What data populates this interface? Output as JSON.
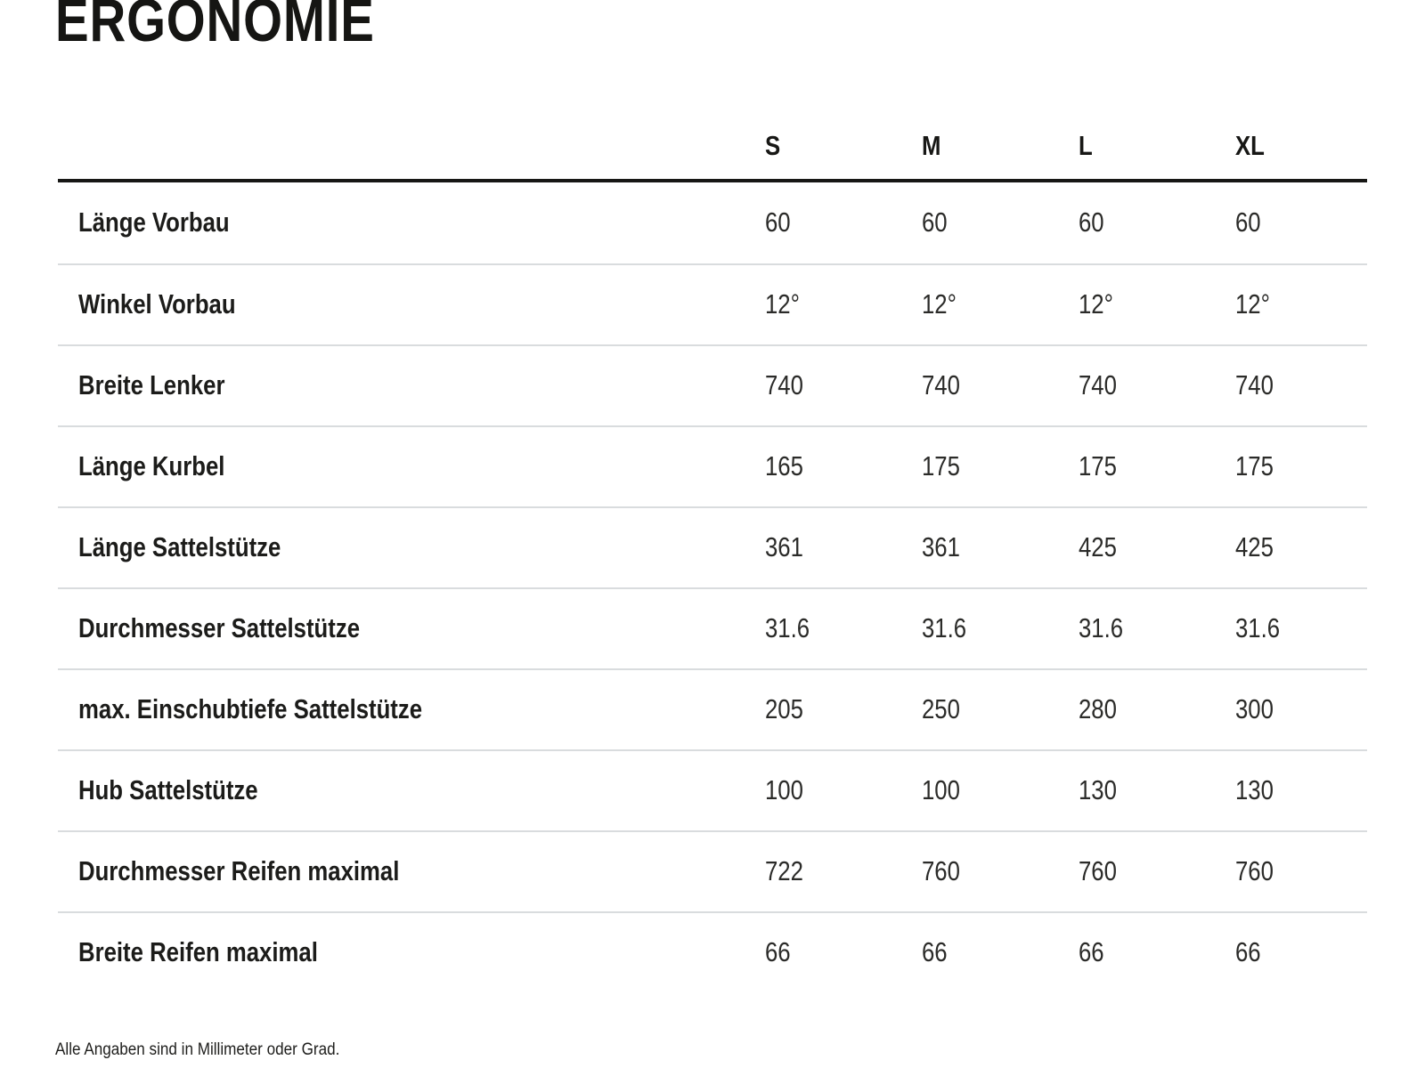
{
  "page": {
    "title": "ERGONOMIE",
    "footnote": "Alle Angaben sind in Millimeter oder Grad."
  },
  "table": {
    "columns": [
      "S",
      "M",
      "L",
      "XL"
    ],
    "rows": [
      {
        "label": "Länge Vorbau",
        "values": [
          "60",
          "60",
          "60",
          "60"
        ]
      },
      {
        "label": "Winkel Vorbau",
        "values": [
          "12°",
          "12°",
          "12°",
          "12°"
        ]
      },
      {
        "label": "Breite Lenker",
        "values": [
          "740",
          "740",
          "740",
          "740"
        ]
      },
      {
        "label": "Länge Kurbel",
        "values": [
          "165",
          "175",
          "175",
          "175"
        ]
      },
      {
        "label": "Länge Sattelstütze",
        "values": [
          "361",
          "361",
          "425",
          "425"
        ]
      },
      {
        "label": "Durchmesser Sattelstütze",
        "values": [
          "31.6",
          "31.6",
          "31.6",
          "31.6"
        ]
      },
      {
        "label": "max. Einschubtiefe Sattelstütze",
        "values": [
          "205",
          "250",
          "280",
          "300"
        ]
      },
      {
        "label": "Hub Sattelstütze",
        "values": [
          "100",
          "100",
          "130",
          "130"
        ]
      },
      {
        "label": "Durchmesser Reifen maximal",
        "values": [
          "722",
          "760",
          "760",
          "760"
        ]
      },
      {
        "label": "Breite Reifen maximal",
        "values": [
          "66",
          "66",
          "66",
          "66"
        ]
      }
    ],
    "colors": {
      "text": "#1c1c1a",
      "header_rule": "#171715",
      "row_divider": "#d9dcde",
      "background": "#ffffff"
    }
  }
}
